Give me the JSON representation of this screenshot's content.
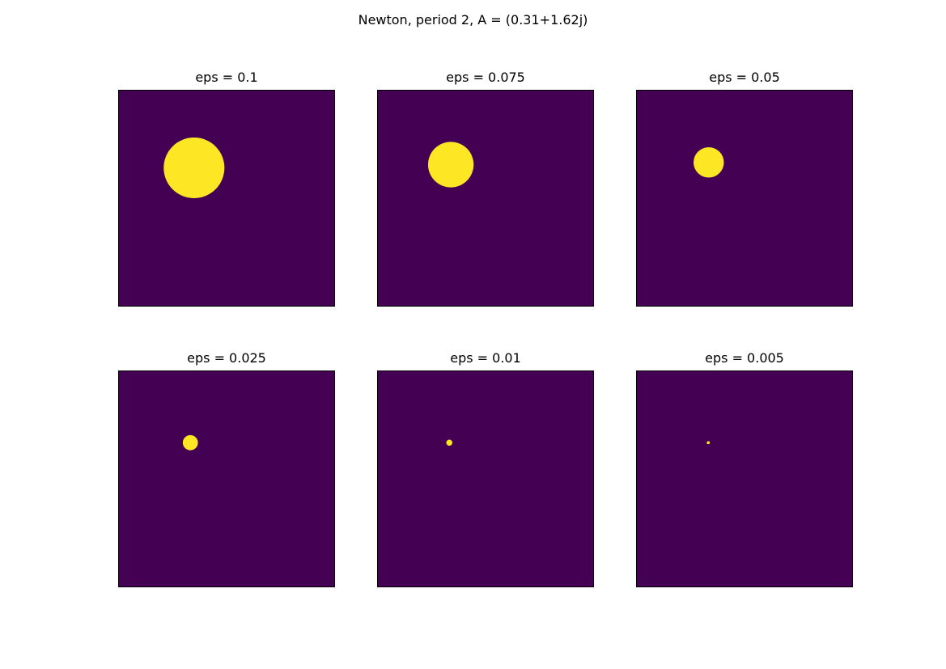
{
  "figure": {
    "title": "Newton, period 2, A = (0.31+1.62j)"
  },
  "colors": {
    "background": "#440154",
    "foreground": "#fde725",
    "frame": "#000000"
  },
  "chart_data": [
    {
      "type": "heatmap",
      "title": "eps = 0.1",
      "grid": false,
      "axes_visible": false,
      "colormap": "viridis",
      "values": [
        0,
        1
      ],
      "region": {
        "shape": "disk",
        "center": [
          0.35,
          0.36
        ],
        "radius": 0.1
      }
    },
    {
      "type": "heatmap",
      "title": "eps = 0.075",
      "grid": false,
      "axes_visible": false,
      "colormap": "viridis",
      "values": [
        0,
        1
      ],
      "region": {
        "shape": "disk",
        "center": [
          0.34,
          0.345
        ],
        "radius": 0.075
      }
    },
    {
      "type": "heatmap",
      "title": "eps = 0.05",
      "grid": false,
      "axes_visible": false,
      "colormap": "viridis",
      "values": [
        0,
        1
      ],
      "region": {
        "shape": "disk",
        "center": [
          0.335,
          0.335
        ],
        "radius": 0.05
      }
    },
    {
      "type": "heatmap",
      "title": "eps = 0.025",
      "grid": false,
      "axes_visible": false,
      "colormap": "viridis",
      "values": [
        0,
        1
      ],
      "region": {
        "shape": "disk",
        "center": [
          0.333,
          0.333
        ],
        "radius": 0.025
      }
    },
    {
      "type": "heatmap",
      "title": "eps = 0.01",
      "grid": false,
      "axes_visible": false,
      "colormap": "viridis",
      "values": [
        0,
        1
      ],
      "region": {
        "shape": "disk",
        "center": [
          0.333,
          0.333
        ],
        "radius": 0.01
      }
    },
    {
      "type": "heatmap",
      "title": "eps = 0.005",
      "grid": false,
      "axes_visible": false,
      "colormap": "viridis",
      "values": [
        0,
        1
      ],
      "region": {
        "shape": "disk",
        "center": [
          0.333,
          0.333
        ],
        "radius": 0.005
      }
    }
  ]
}
